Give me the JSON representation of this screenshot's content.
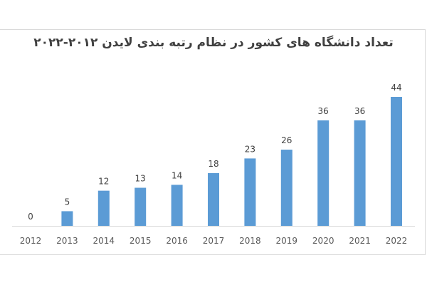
{
  "chart_data": {
    "type": "bar",
    "title": "تعداد دانشگاه های کشور در نظام رتبه بندی لایدن ۲۰۱۲-۲۰۲۲",
    "categories": [
      "2012",
      "2013",
      "2014",
      "2015",
      "2016",
      "2017",
      "2018",
      "2019",
      "2020",
      "2021",
      "2022"
    ],
    "values": [
      0,
      5,
      12,
      13,
      14,
      18,
      23,
      26,
      36,
      36,
      44
    ],
    "xlabel": "",
    "ylabel": "",
    "ylim": [
      0,
      44
    ],
    "grid": false,
    "legend": "none",
    "bar_color": "#5b9bd5"
  }
}
